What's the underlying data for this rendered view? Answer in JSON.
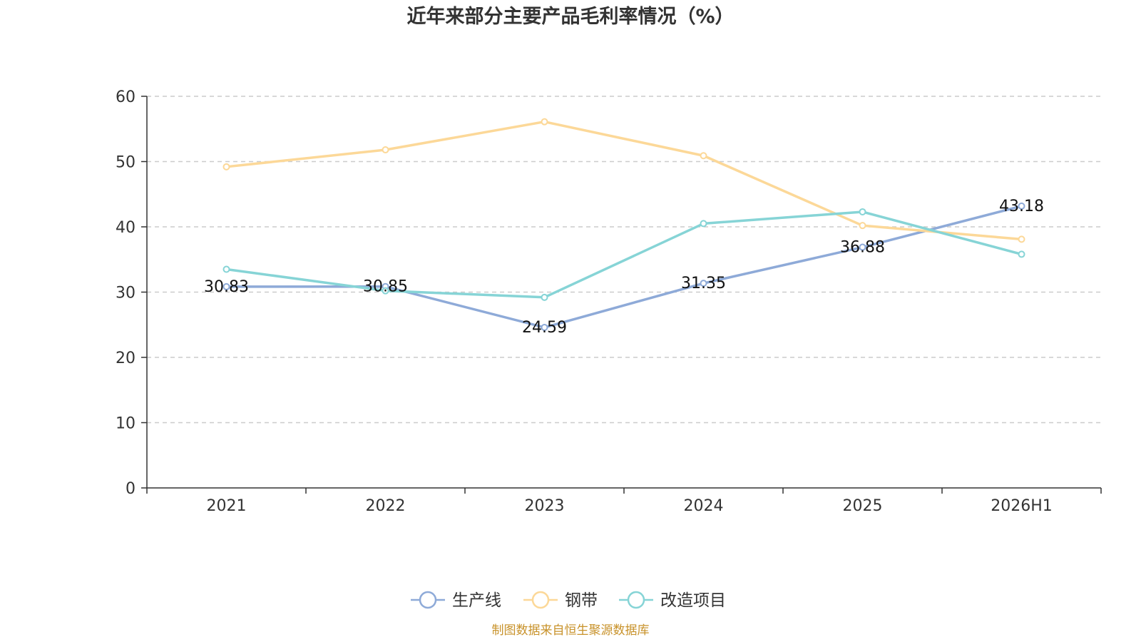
{
  "source_note": "制图数据来自恒生聚源数据库",
  "colors": {
    "axis": "#333333",
    "grid": "#cccccc",
    "source": "#c8922a"
  },
  "chart_data": {
    "type": "line",
    "title": "近年来部分主要产品毛利率情况（%）",
    "xlabel": "",
    "ylabel": "",
    "categories": [
      "2021",
      "2022",
      "2023",
      "2024",
      "2025",
      "2026H1"
    ],
    "ylim": [
      0,
      60
    ],
    "yticks": [
      0,
      10,
      20,
      30,
      40,
      50,
      60
    ],
    "grid": true,
    "legend_position": "bottom-center",
    "series": [
      {
        "name": "生产线",
        "color": "#8eaad8",
        "values": [
          30.83,
          30.85,
          24.59,
          31.35,
          36.88,
          43.18
        ],
        "labels": [
          "30.83",
          "30.85",
          "24.59",
          "31.35",
          "36.88",
          "43.18"
        ]
      },
      {
        "name": "钢带",
        "color": "#fcd898",
        "values": [
          49.2,
          51.8,
          56.1,
          50.9,
          40.2,
          38.1
        ]
      },
      {
        "name": "改造项目",
        "color": "#86d4d6",
        "values": [
          33.5,
          30.2,
          29.2,
          40.5,
          42.3,
          35.8
        ]
      }
    ]
  }
}
